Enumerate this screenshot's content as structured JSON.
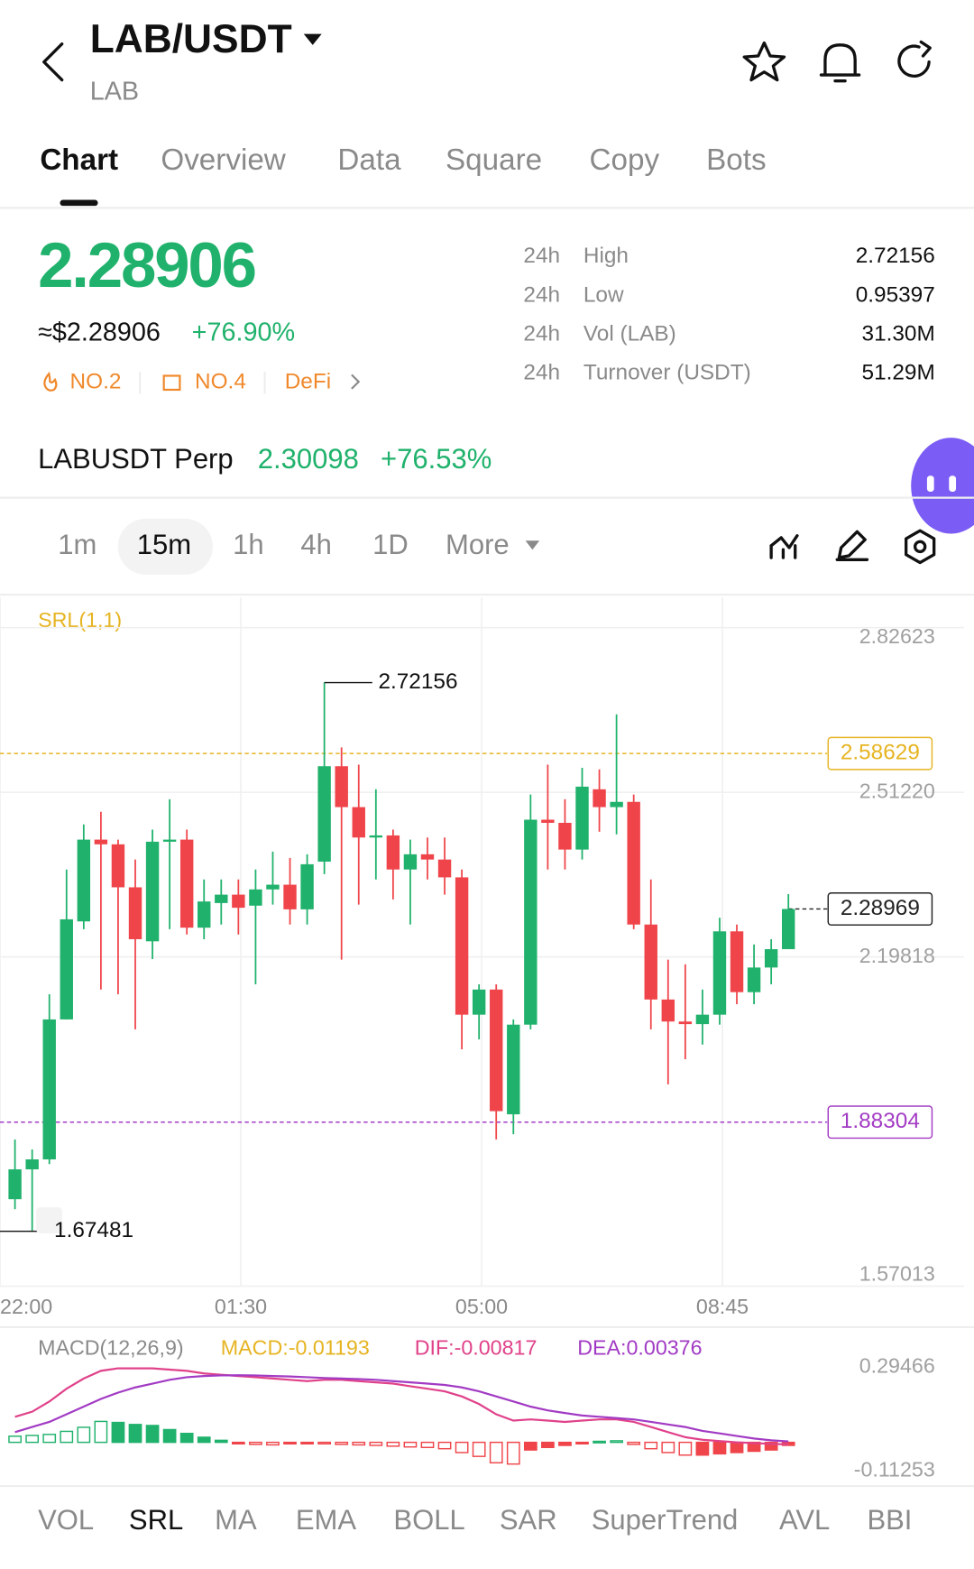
{
  "header": {
    "pair": "LAB/USDT",
    "base": "LAB"
  },
  "tabs": [
    "Chart",
    "Overview",
    "Data",
    "Square",
    "Copy",
    "Bots"
  ],
  "ticker": {
    "price": "2.28906",
    "usd": "≈$2.28906",
    "change": "+76.90%",
    "tags": [
      "NO.2",
      "NO.4",
      "DeFi"
    ],
    "stats": [
      {
        "period": "24h",
        "label": "High",
        "value": "2.72156"
      },
      {
        "period": "24h",
        "label": "Low",
        "value": "0.95397"
      },
      {
        "period": "24h",
        "label": "Vol (LAB)",
        "value": "31.30M"
      },
      {
        "period": "24h",
        "label": "Turnover (USDT)",
        "value": "51.29M"
      }
    ]
  },
  "perp": {
    "name": "LABUSDT Perp",
    "price": "2.30098",
    "change": "+76.53%"
  },
  "timeframes": [
    "1m",
    "15m",
    "1h",
    "4h",
    "1D",
    "More"
  ],
  "indicators": [
    "VOL",
    "SRL",
    "MA",
    "EMA",
    "BOLL",
    "SAR",
    "SuperTrend",
    "AVL",
    "BBI"
  ],
  "chart_data": [
    {
      "type": "candlestick",
      "indicator_label": "SRL(1,1)",
      "up_color": "#20b26c",
      "down_color": "#ef454a",
      "x": [
        1,
        2,
        3,
        4,
        5,
        6,
        7,
        8,
        9,
        10,
        11,
        12,
        13,
        14,
        15,
        16,
        17,
        18,
        19,
        20,
        21,
        22,
        23,
        24,
        25,
        26,
        27,
        28,
        29,
        30,
        31,
        32,
        33,
        34,
        35,
        36,
        37,
        38,
        39,
        40,
        41,
        42,
        43,
        44,
        45,
        46
      ],
      "open": [
        1.736,
        1.793,
        1.812,
        2.079,
        2.266,
        2.422,
        2.413,
        2.331,
        2.228,
        2.418,
        2.422,
        2.254,
        2.301,
        2.317,
        2.296,
        2.327,
        2.336,
        2.289,
        2.38,
        2.562,
        2.484,
        2.426,
        2.43,
        2.365,
        2.394,
        2.384,
        2.35,
        2.088,
        2.136,
        1.898,
        2.069,
        2.46,
        2.454,
        2.403,
        2.518,
        2.484,
        2.494,
        2.26,
        2.117,
        2.075,
        2.07,
        2.088,
        2.247,
        2.131,
        2.178,
        2.213
      ],
      "high": [
        1.85,
        1.831,
        2.127,
        2.365,
        2.451,
        2.475,
        2.422,
        2.384,
        2.441,
        2.499,
        2.441,
        2.346,
        2.346,
        2.346,
        2.365,
        2.399,
        2.387,
        2.394,
        2.72156,
        2.598,
        2.565,
        2.518,
        2.441,
        2.422,
        2.426,
        2.426,
        2.365,
        2.146,
        2.146,
        2.079,
        2.508,
        2.565,
        2.499,
        2.559,
        2.556,
        2.661,
        2.508,
        2.346,
        2.193,
        2.184,
        2.136,
        2.273,
        2.26,
        2.222,
        2.232,
        2.318
      ],
      "low": [
        1.717,
        1.67481,
        1.803,
        2.079,
        2.251,
        2.136,
        2.127,
        2.06,
        2.194,
        2.251,
        2.241,
        2.232,
        2.26,
        2.241,
        2.146,
        2.298,
        2.26,
        2.26,
        2.356,
        2.193,
        2.298,
        2.346,
        2.308,
        2.26,
        2.346,
        2.317,
        2.022,
        2.041,
        1.85,
        1.86,
        2.06,
        2.365,
        2.365,
        2.384,
        2.437,
        2.432,
        2.251,
        2.06,
        1.955,
        2.003,
        2.031,
        2.069,
        2.108,
        2.108,
        2.146,
        2.213
      ],
      "close": [
        1.793,
        1.812,
        2.079,
        2.27,
        2.422,
        2.413,
        2.331,
        2.232,
        2.418,
        2.422,
        2.254,
        2.304,
        2.317,
        2.292,
        2.327,
        2.336,
        2.289,
        2.375,
        2.562,
        2.484,
        2.426,
        2.43,
        2.365,
        2.394,
        2.384,
        2.35,
        2.088,
        2.136,
        1.904,
        2.069,
        2.46,
        2.454,
        2.403,
        2.523,
        2.484,
        2.494,
        2.26,
        2.117,
        2.075,
        2.07,
        2.088,
        2.247,
        2.131,
        2.178,
        2.213,
        2.28969
      ],
      "xlim": [
        0.13,
        56.1
      ],
      "xticks": [
        {
          "value": 0.13,
          "label": "22:00"
        },
        {
          "value": 14.14,
          "label": "01:30"
        },
        {
          "value": 28.15,
          "label": "05:00"
        },
        {
          "value": 42.16,
          "label": "08:45"
        }
      ],
      "ylim": [
        1.57013,
        2.88362
      ],
      "yticks": [
        2.82623,
        {
          "value": 2.5122,
          "label": "2.51220"
        },
        2.19818,
        1.57013
      ],
      "grid": true,
      "high_mark": {
        "x": 19,
        "value": 2.72156
      },
      "low_mark": {
        "x": 2,
        "value": 1.67481
      },
      "price_lines": [
        {
          "value": 2.58629,
          "color": "#e6b422"
        },
        {
          "value": 2.28969,
          "color": "#222222"
        },
        {
          "value": 1.88304,
          "color": "#a23bc4"
        }
      ]
    },
    {
      "type": "macd",
      "title": "MACD(12,26,9)",
      "x": [
        1,
        2,
        3,
        4,
        5,
        6,
        7,
        8,
        9,
        10,
        11,
        12,
        13,
        14,
        15,
        16,
        17,
        18,
        19,
        20,
        21,
        22,
        23,
        24,
        25,
        26,
        27,
        28,
        29,
        30,
        31,
        32,
        33,
        34,
        35,
        36,
        37,
        38,
        39,
        40,
        41,
        42,
        43,
        44,
        45,
        46
      ],
      "xlim": [
        0.13,
        56.1
      ],
      "ylim": [
        -0.1517,
        0.4043
      ],
      "yticks": [
        0.29466,
        -0.11253
      ],
      "up_color": "#20b26c",
      "down_color": "#ef454a",
      "series": [
        {
          "name": "MACD:-0.01193",
          "color": "#e6b422",
          "values": [
            0.024,
            0.027,
            0.031,
            0.043,
            0.059,
            0.082,
            0.078,
            0.07,
            0.066,
            0.05,
            0.035,
            0.02,
            0.008,
            -0.004,
            -0.008,
            -0.01,
            -0.006,
            -0.003,
            -0.004,
            -0.008,
            -0.01,
            -0.012,
            -0.015,
            -0.018,
            -0.02,
            -0.025,
            -0.04,
            -0.055,
            -0.08,
            -0.085,
            -0.03,
            -0.02,
            -0.012,
            -0.005,
            0.004,
            0.006,
            -0.008,
            -0.025,
            -0.04,
            -0.05,
            -0.05,
            -0.045,
            -0.04,
            -0.035,
            -0.03,
            -0.01193
          ]
        },
        {
          "name": "DIF:-0.00817",
          "color": "#e0428a",
          "values": [
            0.1,
            0.12,
            0.16,
            0.21,
            0.25,
            0.28,
            0.29,
            0.29,
            0.29,
            0.285,
            0.28,
            0.27,
            0.265,
            0.26,
            0.255,
            0.25,
            0.245,
            0.24,
            0.245,
            0.245,
            0.24,
            0.235,
            0.23,
            0.22,
            0.21,
            0.2,
            0.18,
            0.15,
            0.11,
            0.085,
            0.09,
            0.085,
            0.08,
            0.085,
            0.09,
            0.09,
            0.08,
            0.06,
            0.04,
            0.02,
            0.01,
            0.005,
            0.0,
            -0.003,
            -0.006,
            -0.00817
          ]
        },
        {
          "name": "DEA:0.00376",
          "color": "#a23bc4",
          "values": [
            0.04,
            0.06,
            0.08,
            0.11,
            0.14,
            0.17,
            0.195,
            0.215,
            0.23,
            0.245,
            0.255,
            0.26,
            0.262,
            0.263,
            0.262,
            0.26,
            0.258,
            0.255,
            0.252,
            0.25,
            0.248,
            0.245,
            0.24,
            0.235,
            0.23,
            0.225,
            0.215,
            0.2,
            0.18,
            0.16,
            0.14,
            0.125,
            0.115,
            0.105,
            0.1,
            0.095,
            0.09,
            0.08,
            0.07,
            0.06,
            0.045,
            0.035,
            0.025,
            0.015,
            0.008,
            0.00376
          ]
        }
      ]
    }
  ]
}
